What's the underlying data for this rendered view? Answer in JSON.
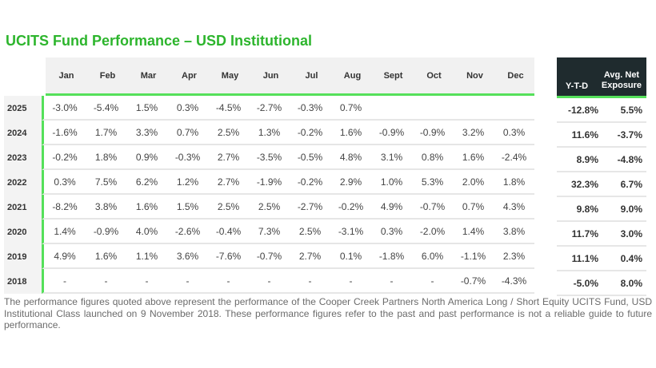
{
  "title": "UCITS Fund Performance – USD Institutional",
  "table": {
    "months": [
      "Jan",
      "Feb",
      "Mar",
      "Apr",
      "May",
      "Jun",
      "Jul",
      "Aug",
      "Sept",
      "Oct",
      "Nov",
      "Dec"
    ],
    "ytd_header": "Y-T-D",
    "exposure_header_line1": "Avg. Net",
    "exposure_header_line2": "Exposure",
    "rows": [
      {
        "year": "2025",
        "values": [
          "-3.0%",
          "-5.4%",
          "1.5%",
          "0.3%",
          "-4.5%",
          "-2.7%",
          "-0.3%",
          "0.7%",
          "",
          "",
          "",
          ""
        ],
        "ytd": "-12.8%",
        "exposure": "5.5%"
      },
      {
        "year": "2024",
        "values": [
          "-1.6%",
          "1.7%",
          "3.3%",
          "0.7%",
          "2.5%",
          "1.3%",
          "-0.2%",
          "1.6%",
          "-0.9%",
          "-0.9%",
          "3.2%",
          "0.3%"
        ],
        "ytd": "11.6%",
        "exposure": "-3.7%"
      },
      {
        "year": "2023",
        "values": [
          "-0.2%",
          "1.8%",
          "0.9%",
          "-0.3%",
          "2.7%",
          "-3.5%",
          "-0.5%",
          "4.8%",
          "3.1%",
          "0.8%",
          "1.6%",
          "-2.4%"
        ],
        "ytd": "8.9%",
        "exposure": "-4.8%"
      },
      {
        "year": "2022",
        "values": [
          "0.3%",
          "7.5%",
          "6.2%",
          "1.2%",
          "2.7%",
          "-1.9%",
          "-0.2%",
          "2.9%",
          "1.0%",
          "5.3%",
          "2.0%",
          "1.8%"
        ],
        "ytd": "32.3%",
        "exposure": "6.7%"
      },
      {
        "year": "2021",
        "values": [
          "-8.2%",
          "3.8%",
          "1.6%",
          "1.5%",
          "2.5%",
          "2.5%",
          "-2.7%",
          "-0.2%",
          "4.9%",
          "-0.7%",
          "0.7%",
          "4.3%"
        ],
        "ytd": "9.8%",
        "exposure": "9.0%"
      },
      {
        "year": "2020",
        "values": [
          "1.4%",
          "-0.9%",
          "4.0%",
          "-2.6%",
          "-0.4%",
          "7.3%",
          "2.5%",
          "-3.1%",
          "0.3%",
          "-2.0%",
          "1.4%",
          "3.8%"
        ],
        "ytd": "11.7%",
        "exposure": "3.0%"
      },
      {
        "year": "2019",
        "values": [
          "4.9%",
          "1.6%",
          "1.1%",
          "3.6%",
          "-7.6%",
          "-0.7%",
          "2.7%",
          "0.1%",
          "-1.8%",
          "6.0%",
          "-1.1%",
          "2.3%"
        ],
        "ytd": "11.1%",
        "exposure": "0.4%"
      },
      {
        "year": "2018",
        "values": [
          "-",
          "-",
          "-",
          "-",
          "-",
          "-",
          "-",
          "-",
          "-",
          "-",
          "-0.7%",
          "-4.3%"
        ],
        "ytd": "-5.0%",
        "exposure": "8.0%"
      }
    ]
  },
  "footnote": "The performance figures quoted above represent the performance of the Cooper Creek Partners North America Long / Short Equity UCITS Fund, USD Institutional Class launched on 9 November 2018. These performance figures refer to the past and past performance is not a reliable guide to future performance.",
  "colors": {
    "title_green": "#2db52d",
    "accent_green": "#55e05a",
    "ytd_header_bg": "#1f2b2e",
    "header_bg": "#f1f1f1"
  }
}
